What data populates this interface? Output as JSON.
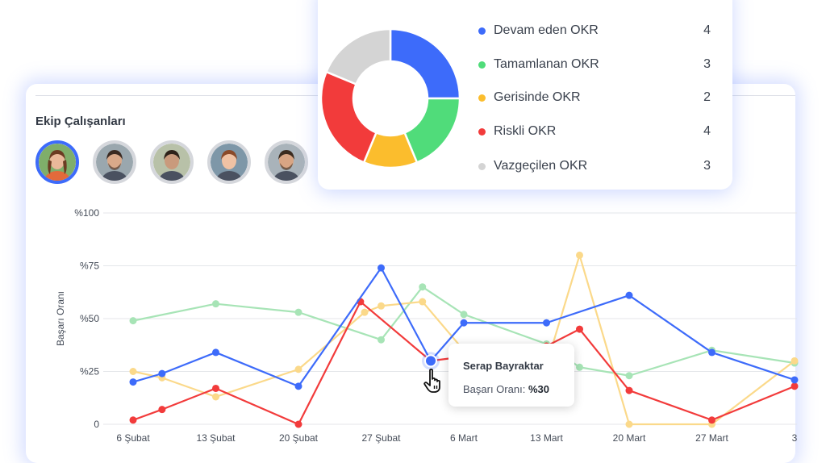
{
  "okr_summary": {
    "items": [
      {
        "label": "Devam eden OKR",
        "count": 4,
        "color": "#3d6bfa"
      },
      {
        "label": "Tamamlanan OKR",
        "count": 3,
        "color": "#50dc7a"
      },
      {
        "label": "Gerisinde OKR",
        "count": 2,
        "color": "#fbbd2d"
      },
      {
        "label": "Riskli OKR",
        "count": 4,
        "color": "#f23b3b"
      },
      {
        "label": "Vazgeçilen OKR",
        "count": 3,
        "color": "#d4d4d4"
      }
    ]
  },
  "team": {
    "title": "Ekip Çalışanları",
    "members": [
      {
        "name": "Serap Bayraktar",
        "selected": true
      },
      {
        "name": "",
        "selected": false
      },
      {
        "name": "",
        "selected": false
      },
      {
        "name": "",
        "selected": false
      },
      {
        "name": "",
        "selected": false
      }
    ]
  },
  "chart_data": {
    "type": "line",
    "ylabel": "Başarı Oranı",
    "y_ticks": [
      "0",
      "%25",
      "%50",
      "%75",
      "%100"
    ],
    "ylim": [
      0,
      100
    ],
    "categories": [
      "6 Şubat",
      "13 Şubat",
      "20 Şubat",
      "27 Şubat",
      "6 Mart",
      "13 Mart",
      "20 Mart",
      "27 Mart",
      "3"
    ],
    "grid": true,
    "series": [
      {
        "color": "#3d6bfa",
        "x": [
          0.0,
          0.35,
          1.0,
          2.0,
          3.0,
          3.6,
          4.0,
          5.0,
          6.0,
          7.0,
          8.0
        ],
        "y": [
          20,
          24,
          34,
          18,
          74,
          30,
          48,
          48,
          61,
          34,
          21
        ]
      },
      {
        "color": "#f23b3b",
        "x": [
          0.0,
          0.35,
          1.0,
          2.0,
          2.75,
          3.6,
          5.0,
          5.4,
          6.0,
          7.0,
          8.0
        ],
        "y": [
          2,
          7,
          17,
          0,
          58,
          30,
          37,
          45,
          16,
          2,
          18
        ]
      },
      {
        "color": "#fbd98a",
        "x": [
          0.0,
          0.35,
          1.0,
          2.0,
          2.8,
          3.0,
          3.5,
          4.0,
          5.0,
          5.4,
          6.0,
          7.0,
          8.0
        ],
        "y": [
          25,
          22,
          13,
          26,
          53,
          56,
          58,
          35,
          28,
          80,
          0,
          0,
          30
        ]
      },
      {
        "color": "#a7e4b6",
        "x": [
          0.0,
          1.0,
          2.0,
          3.0,
          3.5,
          4.0,
          5.0,
          5.4,
          6.0,
          7.0,
          8.0
        ],
        "y": [
          49,
          57,
          53,
          40,
          65,
          52,
          38,
          27,
          23,
          35,
          29
        ]
      }
    ]
  },
  "tooltip": {
    "name": "Serap Bayraktar",
    "metric_label": "Başarı Oranı:",
    "metric_value": "%30"
  },
  "icons": {
    "cursor": "hand-pointer-icon"
  }
}
